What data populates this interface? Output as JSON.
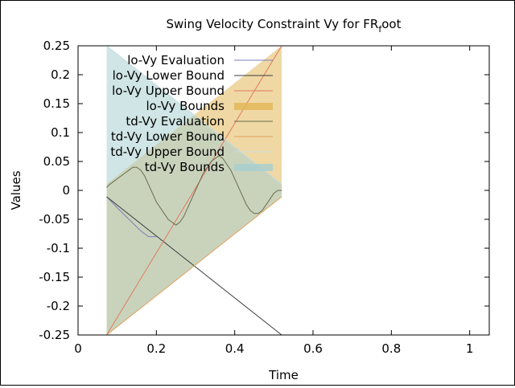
{
  "chart_data": {
    "type": "line",
    "title_main": "Swing Velocity Constraint Vy for FR",
    "title_sub": "f",
    "title_tail": "oot",
    "xlabel": "Time",
    "ylabel": "Values",
    "xlim": [
      0,
      1.05
    ],
    "ylim": [
      -0.25,
      0.25
    ],
    "xticks": [
      0,
      0.2,
      0.4,
      0.6,
      0.8,
      1
    ],
    "xtick_labels": [
      "0",
      "0.2",
      "0.4",
      "0.6",
      "0.8",
      "1"
    ],
    "yticks": [
      -0.25,
      -0.2,
      -0.15,
      -0.1,
      -0.05,
      0,
      0.05,
      0.1,
      0.15,
      0.2,
      0.25
    ],
    "ytick_labels": [
      "-0.25",
      "-0.2",
      "-0.15",
      "-0.1",
      "-0.05",
      "0",
      "0.05",
      "0.1",
      "0.15",
      "0.2",
      "0.25"
    ],
    "grid": false,
    "legend_position": "top-right",
    "series": [
      {
        "name": "lo-Vy Evaluation",
        "kind": "line",
        "color": "#7b7fb5",
        "x": [
          0.073,
          0.1,
          0.13,
          0.16,
          0.18,
          0.2
        ],
        "y": [
          -0.011,
          -0.03,
          -0.05,
          -0.07,
          -0.08,
          -0.08
        ]
      },
      {
        "name": "lo-Vy Lower Bound",
        "kind": "line",
        "color": "#3d3d3d",
        "x": [
          0.073,
          0.52
        ],
        "y": [
          -0.011,
          -0.25
        ]
      },
      {
        "name": "lo-Vy Upper Bound",
        "kind": "line",
        "color": "#e07a5f",
        "x": [
          0.073,
          0.52
        ],
        "y": [
          -0.25,
          0.25
        ]
      },
      {
        "name": "lo-Vy Bounds",
        "kind": "band",
        "color": "#e2b85a",
        "x": [
          0.073,
          0.52
        ],
        "lower": [
          -0.25,
          -0.011
        ],
        "upper": [
          0.011,
          0.25
        ]
      },
      {
        "name": "td-Vy Evaluation",
        "kind": "line",
        "color": "#6b6b4a",
        "x": [
          0.073,
          0.08,
          0.09,
          0.1,
          0.11,
          0.12,
          0.13,
          0.14,
          0.15,
          0.16,
          0.17,
          0.18,
          0.19,
          0.2,
          0.21,
          0.22,
          0.23,
          0.24,
          0.25,
          0.26,
          0.27,
          0.28,
          0.29,
          0.3,
          0.31,
          0.32,
          0.33,
          0.34,
          0.35,
          0.36,
          0.37,
          0.38,
          0.39,
          0.4,
          0.41,
          0.42,
          0.43,
          0.44,
          0.45,
          0.46,
          0.47,
          0.48,
          0.49,
          0.5,
          0.51,
          0.52
        ],
        "y": [
          0.005,
          0.01,
          0.015,
          0.02,
          0.025,
          0.03,
          0.035,
          0.04,
          0.04,
          0.035,
          0.025,
          0.01,
          -0.005,
          -0.02,
          -0.03,
          -0.04,
          -0.05,
          -0.055,
          -0.06,
          -0.055,
          -0.045,
          -0.03,
          -0.015,
          0.0,
          0.015,
          0.03,
          0.04,
          0.05,
          0.055,
          0.06,
          0.055,
          0.045,
          0.035,
          0.02,
          0.005,
          -0.01,
          -0.025,
          -0.035,
          -0.04,
          -0.04,
          -0.035,
          -0.025,
          -0.015,
          -0.005,
          0.0,
          0.0
        ]
      },
      {
        "name": "td-Vy Lower Bound",
        "kind": "line",
        "color": "#e0a060",
        "x": [
          0.073,
          0.52
        ],
        "y": [
          -0.25,
          -0.011
        ]
      },
      {
        "name": "td-Vy Upper Bound",
        "kind": "line",
        "color": "#c8dde0",
        "x": [
          0.073,
          0.52
        ],
        "y": [
          0.25,
          0.011
        ]
      },
      {
        "name": "td-Vy Bounds",
        "kind": "band",
        "color": "#a9cfcf",
        "x": [
          0.073,
          0.52
        ],
        "lower": [
          -0.25,
          -0.011
        ],
        "upper": [
          0.25,
          0.011
        ]
      }
    ]
  }
}
